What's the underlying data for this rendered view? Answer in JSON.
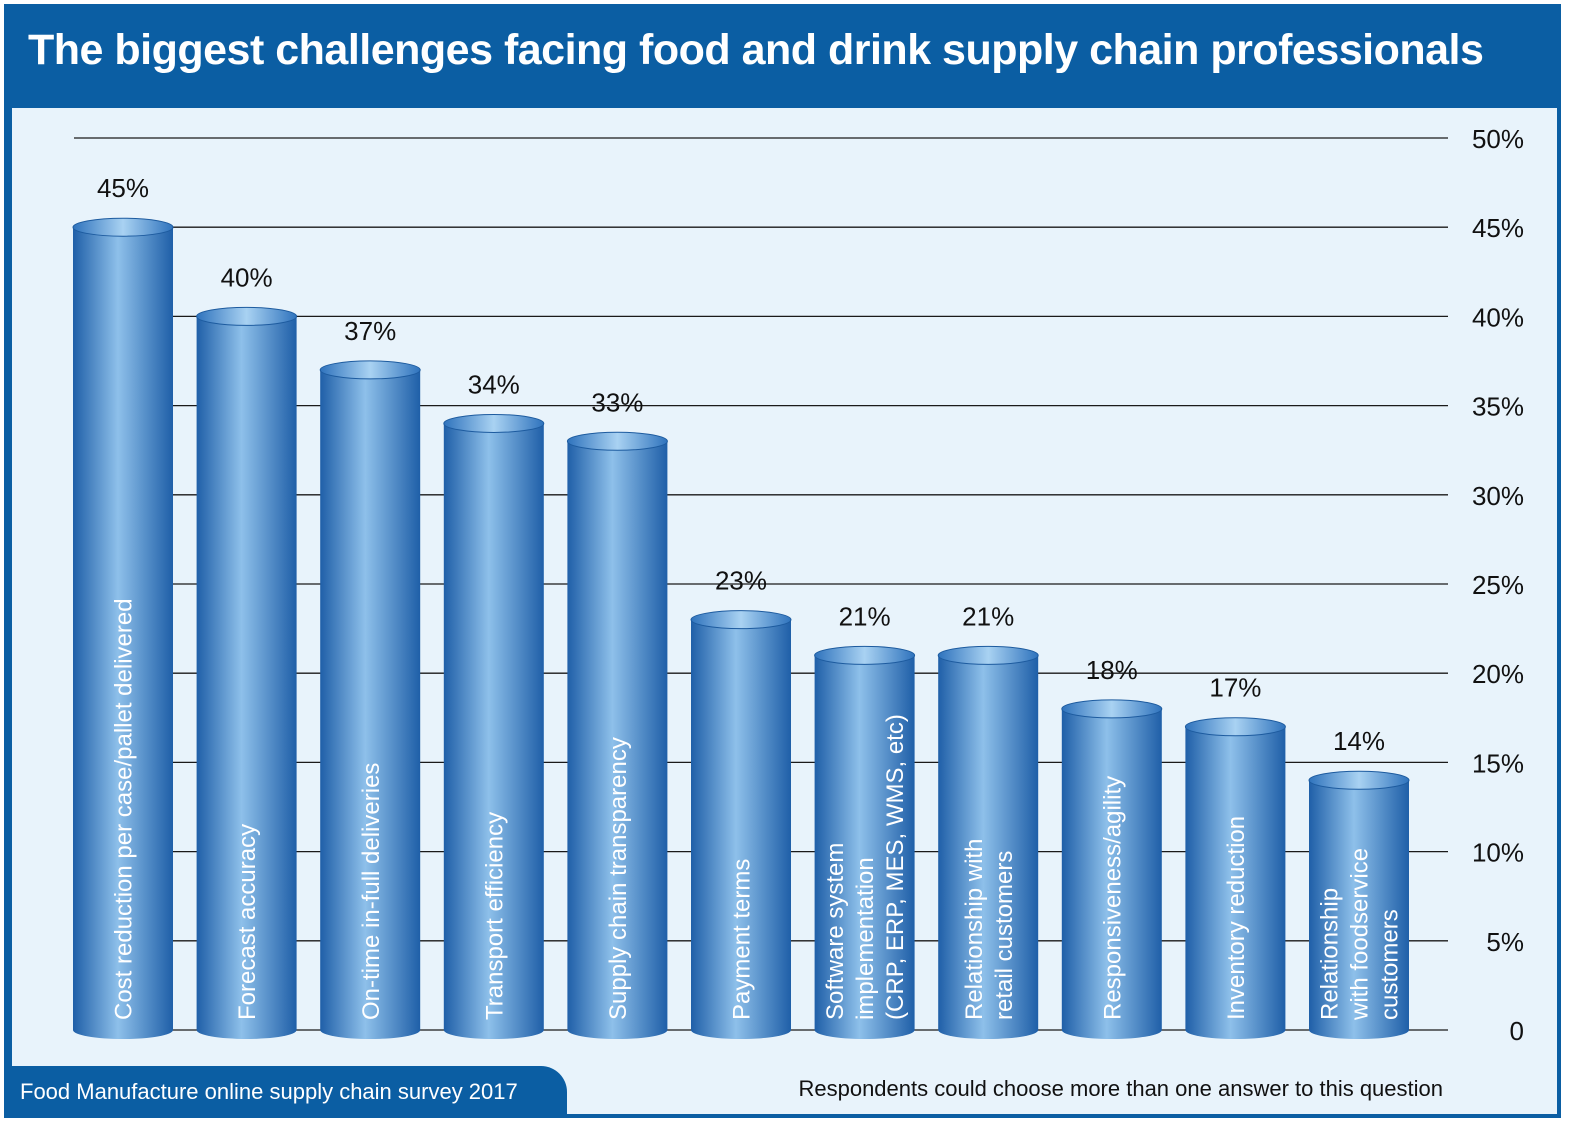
{
  "title": "The biggest challenges facing food and drink supply chain professionals",
  "source": "Food Manufacture online supply chain survey 2017",
  "note": "Respondents could choose more than one answer to this question",
  "colors": {
    "frame": "#0b5ea3",
    "plot_bg": "#e8f3fb",
    "bar_dark": "#1f5fa8",
    "bar_light": "#8ec0ea"
  },
  "chart_data": {
    "type": "bar",
    "orientation": "vertical",
    "categories": [
      "Cost reduction per case/pallet delivered",
      "Forecast accuracy",
      "On-time in-full deliveries",
      "Transport efficiency",
      "Supply chain transparency",
      "Payment terms",
      "Software system implementation (CRP, ERP, MES, WMS, etc)",
      "Relationship with retail customers",
      "Responsiveness/agility",
      "Inventory reduction",
      "Relationship with foodservice customers"
    ],
    "category_label_lines": [
      [
        "Cost reduction per case/pallet delivered"
      ],
      [
        "Forecast accuracy"
      ],
      [
        "On-time in-full deliveries"
      ],
      [
        "Transport efficiency"
      ],
      [
        "Supply chain transparency"
      ],
      [
        "Payment terms"
      ],
      [
        "Software system",
        "implementation",
        "(CRP, ERP, MES, WMS, etc)"
      ],
      [
        "Relationship with",
        "retail customers"
      ],
      [
        "Responsiveness/agility"
      ],
      [
        "Inventory reduction"
      ],
      [
        "Relationship",
        "with foodservice",
        "customers"
      ]
    ],
    "values": [
      45,
      40,
      37,
      34,
      33,
      23,
      21,
      21,
      18,
      17,
      14
    ],
    "data_labels": [
      "45%",
      "40%",
      "37%",
      "34%",
      "33%",
      "23%",
      "21%",
      "21%",
      "18%",
      "17%",
      "14%"
    ],
    "ylim": [
      0,
      50
    ],
    "yticks": [
      0,
      5,
      10,
      15,
      20,
      25,
      30,
      35,
      40,
      45,
      50
    ],
    "ytick_labels": [
      "0",
      "5%",
      "10%",
      "15%",
      "20%",
      "25%",
      "30%",
      "35%",
      "40%",
      "45%",
      "50%"
    ],
    "y_axis_side": "right",
    "grid": true
  }
}
